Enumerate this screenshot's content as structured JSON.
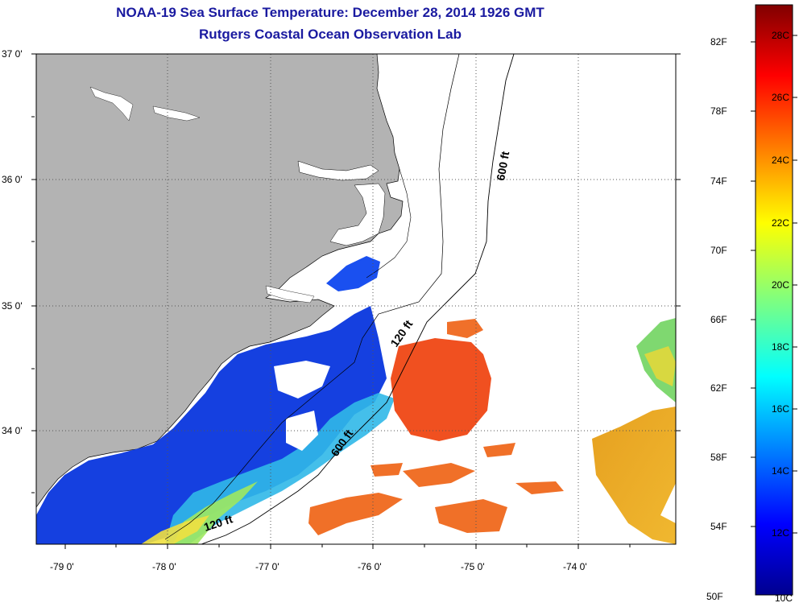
{
  "header": {
    "title": "NOAA-19 Sea Surface Temperature:  December 28, 2014 1926 GMT",
    "subtitle": "Rutgers Coastal Ocean Observation Lab"
  },
  "map": {
    "lat_labels": [
      "37 0'",
      "36 0'",
      "35 0'",
      "34 0'"
    ],
    "lon_labels": [
      "-79 0'",
      "-78 0'",
      "-77 0'",
      "-76 0'",
      "-75 0'",
      "-74 0'"
    ],
    "contours": [
      "600 ft",
      "120 ft",
      "600 ft",
      "120 ft"
    ],
    "colors": {
      "land": "#b3b3b3",
      "ocean": "#ffffff",
      "title": "#1a1aa0"
    }
  },
  "colorbar": {
    "fahrenheit": [
      "82F",
      "78F",
      "74F",
      "70F",
      "66F",
      "62F",
      "58F",
      "54F",
      "50F"
    ],
    "celsius": [
      "28C",
      "26C",
      "24C",
      "22C",
      "20C",
      "18C",
      "16C",
      "14C",
      "12C",
      "10C"
    ]
  }
}
